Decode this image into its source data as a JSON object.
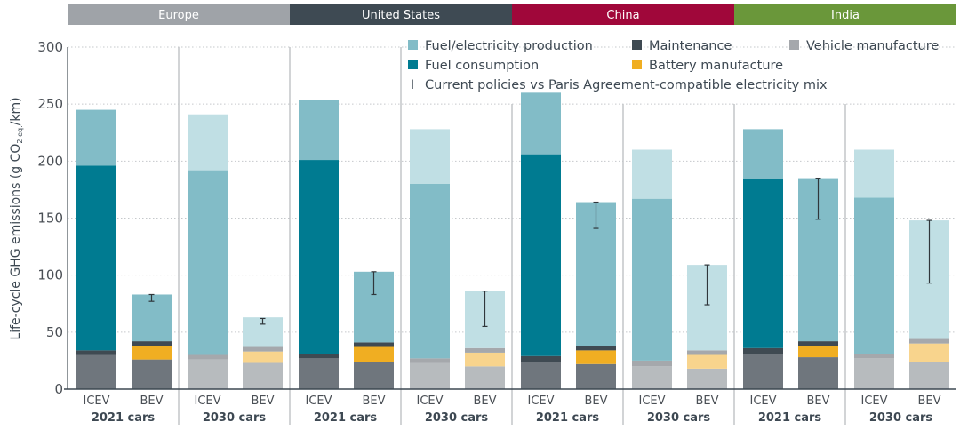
{
  "chart_data": {
    "type": "bar",
    "stacked": true,
    "title": "",
    "ylabel": "Life-cycle GHG emissions (g CO2 eq./km)",
    "ylabel_parts": {
      "pre": "Life-cycle GHG emissions (g CO",
      "sub": "2 eq.",
      "post": "/km)"
    },
    "ylim": [
      0,
      300
    ],
    "yticks": [
      0,
      50,
      100,
      150,
      200,
      250,
      300
    ],
    "grid": true,
    "legend_position": "top-right",
    "regions": [
      {
        "name": "Europe",
        "color": "#9fa3a8"
      },
      {
        "name": "United States",
        "color": "#3e4a53"
      },
      {
        "name": "China",
        "color": "#a0073a"
      },
      {
        "name": "India",
        "color": "#6a973a"
      }
    ],
    "groups": [
      "2021 cars",
      "2030 cars"
    ],
    "categories": [
      "ICEV",
      "BEV"
    ],
    "legend": [
      {
        "key": "fuel_production",
        "label": "Fuel/electricity production",
        "color": "#82bcc7"
      },
      {
        "key": "maintenance",
        "label": "Maintenance",
        "color": "#3f4a52"
      },
      {
        "key": "vehicle_manufacture",
        "label": "Vehicle manufacture",
        "color": "#a5a8ac"
      },
      {
        "key": "fuel_consumption",
        "label": "Fuel consumption",
        "color": "#007b91"
      },
      {
        "key": "battery_manufacture",
        "label": "Battery manufacture",
        "color": "#f0ae22"
      },
      {
        "key": "error_bar",
        "label": "Current policies vs Paris Agreement-compatible electricity mix",
        "glyph": "I"
      }
    ],
    "colors_2021": {
      "vehicle_manufacture": "#6f767d",
      "battery_manufacture": "#f0ae22",
      "maintenance": "#3f4a52",
      "fuel_consumption": "#007b91",
      "fuel_production": "#82bcc7"
    },
    "colors_2030": {
      "vehicle_manufacture": "#b7bbbe",
      "battery_manufacture": "#f8d48d",
      "maintenance": "#a5a8ac",
      "fuel_consumption": "#82bcc7",
      "fuel_production": "#c0dfe4"
    },
    "series_order": [
      "vehicle_manufacture",
      "battery_manufacture",
      "maintenance",
      "fuel_consumption",
      "fuel_production"
    ],
    "bars": [
      {
        "region": "Europe",
        "group": "2021 cars",
        "category": "ICEV",
        "vehicle_manufacture": 30,
        "battery_manufacture": 0,
        "maintenance": 4,
        "fuel_consumption": 162,
        "fuel_production": 49,
        "total": 245,
        "error": null
      },
      {
        "region": "Europe",
        "group": "2021 cars",
        "category": "BEV",
        "vehicle_manufacture": 26,
        "battery_manufacture": 12,
        "maintenance": 4,
        "fuel_consumption": 0,
        "fuel_production": 41,
        "total": 83,
        "error": [
          77,
          83
        ]
      },
      {
        "region": "Europe",
        "group": "2030 cars",
        "category": "ICEV",
        "vehicle_manufacture": 26,
        "battery_manufacture": 0,
        "maintenance": 4,
        "fuel_consumption": 162,
        "fuel_production": 49,
        "total": 241,
        "error": null
      },
      {
        "region": "Europe",
        "group": "2030 cars",
        "category": "BEV",
        "vehicle_manufacture": 23,
        "battery_manufacture": 10,
        "maintenance": 4,
        "fuel_consumption": 0,
        "fuel_production": 26,
        "total": 63,
        "error": [
          57,
          62
        ]
      },
      {
        "region": "United States",
        "group": "2021 cars",
        "category": "ICEV",
        "vehicle_manufacture": 27,
        "battery_manufacture": 0,
        "maintenance": 4,
        "fuel_consumption": 170,
        "fuel_production": 53,
        "total": 254,
        "error": null
      },
      {
        "region": "United States",
        "group": "2021 cars",
        "category": "BEV",
        "vehicle_manufacture": 24,
        "battery_manufacture": 13,
        "maintenance": 4,
        "fuel_consumption": 0,
        "fuel_production": 62,
        "total": 103,
        "error": [
          83,
          103
        ]
      },
      {
        "region": "United States",
        "group": "2030 cars",
        "category": "ICEV",
        "vehicle_manufacture": 23,
        "battery_manufacture": 0,
        "maintenance": 4,
        "fuel_consumption": 153,
        "fuel_production": 48,
        "total": 228,
        "error": null
      },
      {
        "region": "United States",
        "group": "2030 cars",
        "category": "BEV",
        "vehicle_manufacture": 20,
        "battery_manufacture": 12,
        "maintenance": 4,
        "fuel_consumption": 0,
        "fuel_production": 50,
        "total": 86,
        "error": [
          55,
          86
        ]
      },
      {
        "region": "China",
        "group": "2021 cars",
        "category": "ICEV",
        "vehicle_manufacture": 24,
        "battery_manufacture": 0,
        "maintenance": 5,
        "fuel_consumption": 177,
        "fuel_production": 54,
        "total": 260,
        "error": null
      },
      {
        "region": "China",
        "group": "2021 cars",
        "category": "BEV",
        "vehicle_manufacture": 22,
        "battery_manufacture": 12,
        "maintenance": 4,
        "fuel_consumption": 0,
        "fuel_production": 126,
        "total": 164,
        "error": [
          141,
          164
        ]
      },
      {
        "region": "China",
        "group": "2030 cars",
        "category": "ICEV",
        "vehicle_manufacture": 20,
        "battery_manufacture": 0,
        "maintenance": 5,
        "fuel_consumption": 142,
        "fuel_production": 43,
        "total": 210,
        "error": null
      },
      {
        "region": "China",
        "group": "2030 cars",
        "category": "BEV",
        "vehicle_manufacture": 18,
        "battery_manufacture": 12,
        "maintenance": 4,
        "fuel_consumption": 0,
        "fuel_production": 75,
        "total": 109,
        "error": [
          74,
          109
        ]
      },
      {
        "region": "India",
        "group": "2021 cars",
        "category": "ICEV",
        "vehicle_manufacture": 31,
        "battery_manufacture": 0,
        "maintenance": 5,
        "fuel_consumption": 148,
        "fuel_production": 44,
        "total": 228,
        "error": null
      },
      {
        "region": "India",
        "group": "2021 cars",
        "category": "BEV",
        "vehicle_manufacture": 28,
        "battery_manufacture": 10,
        "maintenance": 4,
        "fuel_consumption": 0,
        "fuel_production": 143,
        "total": 185,
        "error": [
          149,
          185
        ]
      },
      {
        "region": "India",
        "group": "2030 cars",
        "category": "ICEV",
        "vehicle_manufacture": 27,
        "battery_manufacture": 0,
        "maintenance": 4,
        "fuel_consumption": 137,
        "fuel_production": 42,
        "total": 210,
        "error": null
      },
      {
        "region": "India",
        "group": "2030 cars",
        "category": "BEV",
        "vehicle_manufacture": 24,
        "battery_manufacture": 16,
        "maintenance": 4,
        "fuel_consumption": 0,
        "fuel_production": 104,
        "total": 148,
        "error": [
          93,
          148
        ]
      }
    ]
  }
}
